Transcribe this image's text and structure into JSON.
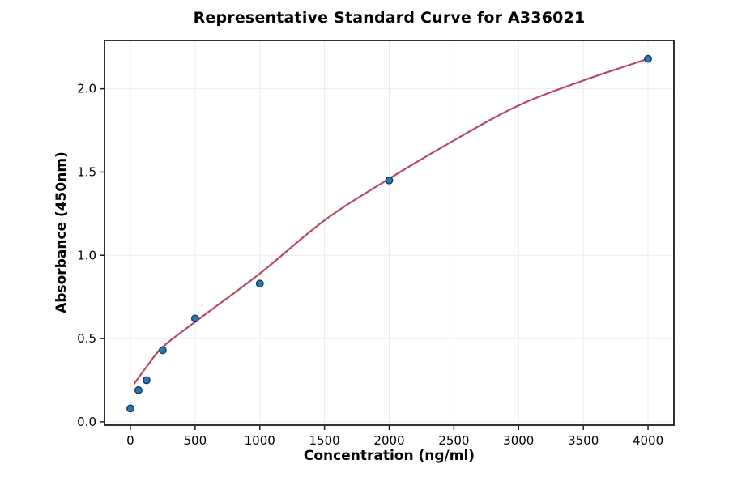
{
  "figure": {
    "background": "#ffffff"
  },
  "chart_data": {
    "type": "scatter",
    "title": "Representative Standard Curve for A336021",
    "xlabel": "Concentration (ng/ml)",
    "ylabel": "Absorbance (450nm)",
    "xlim": [
      -200,
      4200
    ],
    "ylim": [
      -0.02,
      2.29
    ],
    "x_ticks": [
      0,
      500,
      1000,
      1500,
      2000,
      2500,
      3000,
      3500,
      4000
    ],
    "y_ticks": [
      0.0,
      0.5,
      1.0,
      1.5,
      2.0
    ],
    "y_tick_decimals": 1,
    "grid": true,
    "legend": "none",
    "series": [
      {
        "name": "standard-points",
        "type": "scatter",
        "x": [
          0,
          62.5,
          125,
          250,
          500,
          1000,
          2000,
          4000
        ],
        "y": [
          0.08,
          0.19,
          0.25,
          0.43,
          0.62,
          0.83,
          1.45,
          2.18
        ]
      },
      {
        "name": "fitted-curve",
        "type": "line",
        "x": [
          31,
          125,
          250,
          500,
          1000,
          1500,
          2000,
          2500,
          3000,
          3500,
          4000
        ],
        "y": [
          0.23,
          0.33,
          0.45,
          0.6,
          0.89,
          1.21,
          1.46,
          1.69,
          1.9,
          2.05,
          2.18
        ]
      }
    ],
    "colors": {
      "marker_fill": "#2878b5",
      "marker_edge": "#123a5c",
      "line": "#b9495f",
      "grid": "#ebebeb",
      "spine": "#1a1a1a",
      "text": "#000000"
    }
  }
}
